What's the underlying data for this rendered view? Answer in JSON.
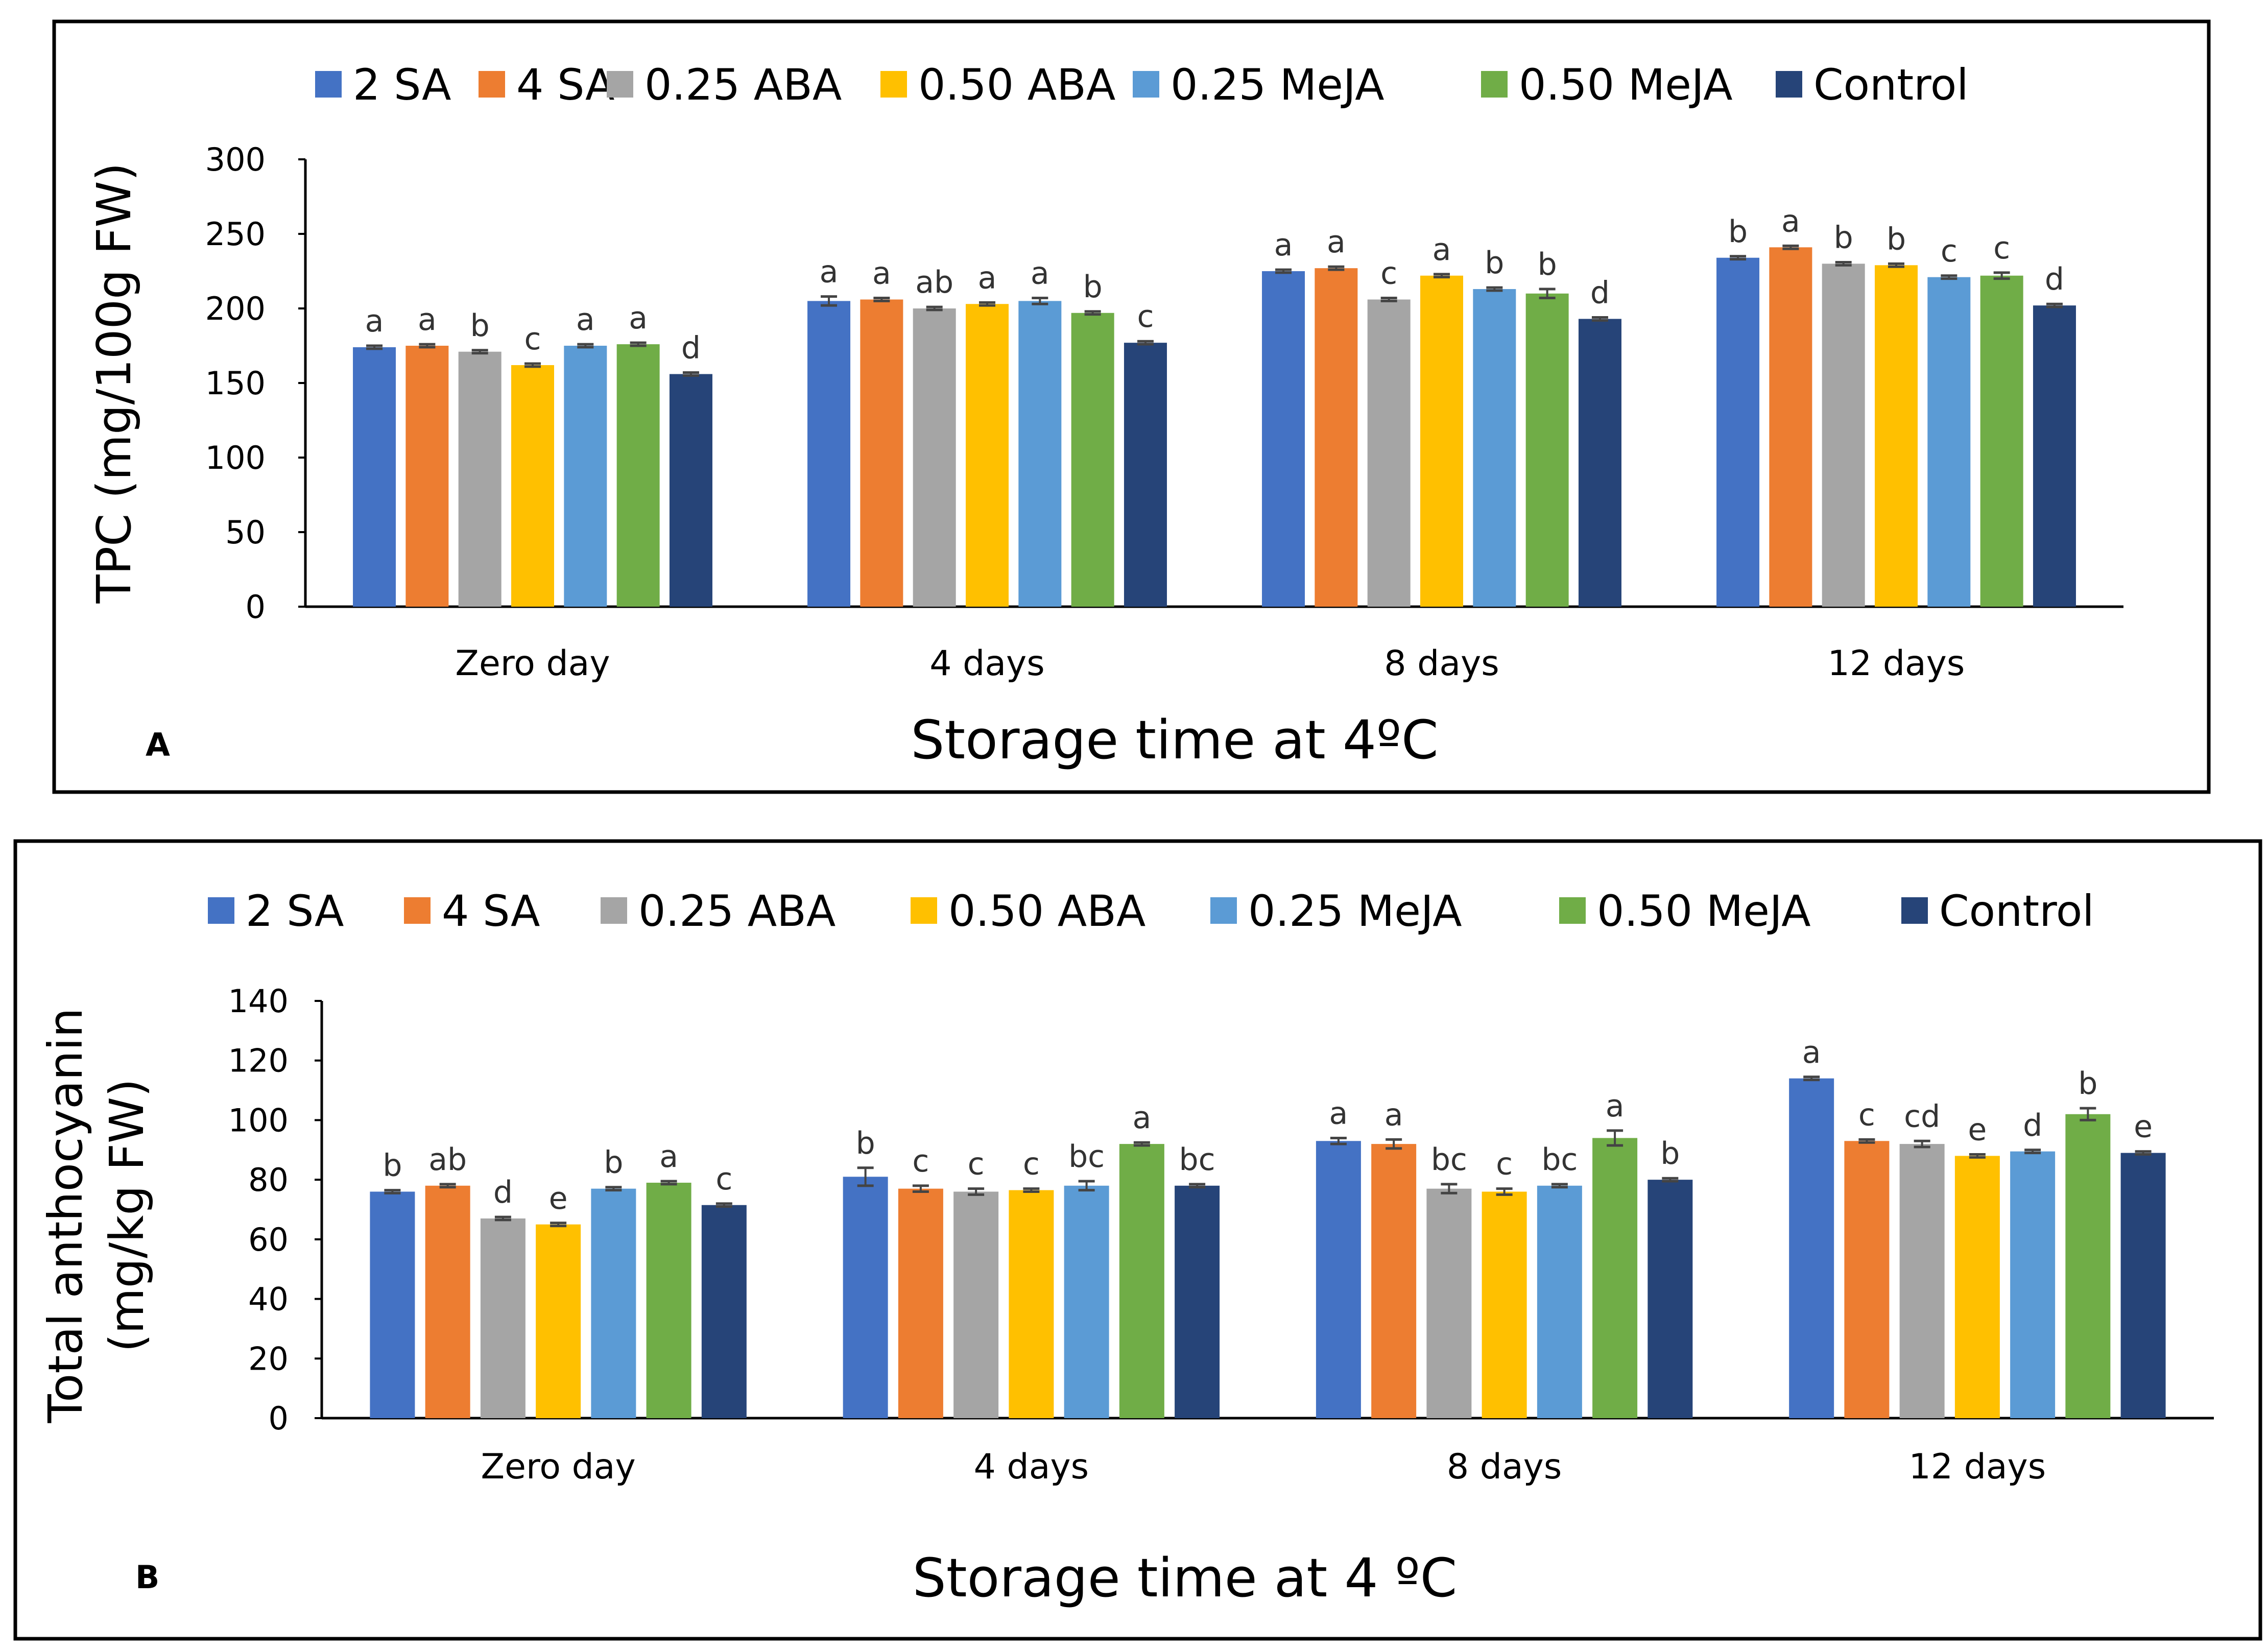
{
  "colors": {
    "2 SA": "#4472C4",
    "4 SA": "#ED7D31",
    "0.25 ABA": "#A5A5A5",
    "0.50 ABA": "#FFC000",
    "0.25 MeJA": "#5B9BD5",
    "0.50 MeJA": "#70AD47",
    "Control": "#264478",
    "error_bar": "#444444",
    "axis": "#000000",
    "text": "#222222"
  },
  "chart_data": [
    {
      "type": "bar",
      "panel": "A",
      "title": "",
      "xlabel": "Storage time at 4ºC",
      "ylabel": "TPC (mg/100g FW)",
      "ylim": [
        0,
        300
      ],
      "yticks": [
        0,
        50,
        100,
        150,
        200,
        250,
        300
      ],
      "grid": false,
      "legend_position": "top",
      "categories": [
        "Zero day",
        "4 days",
        "8 days",
        "12 days"
      ],
      "series": [
        {
          "name": "2 SA",
          "values": [
            174,
            205,
            225,
            234
          ],
          "errors": [
            1,
            3,
            1,
            1
          ],
          "letters": [
            "a",
            "a",
            "a",
            "b"
          ]
        },
        {
          "name": "4 SA",
          "values": [
            175,
            206,
            227,
            241
          ],
          "errors": [
            1,
            1,
            1,
            1
          ],
          "letters": [
            "a",
            "a",
            "a",
            "a"
          ]
        },
        {
          "name": "0.25 ABA",
          "values": [
            171,
            200,
            206,
            230
          ],
          "errors": [
            1,
            1,
            1,
            1
          ],
          "letters": [
            "b",
            "ab",
            "c",
            "b"
          ]
        },
        {
          "name": "0.50 ABA",
          "values": [
            162,
            203,
            222,
            229
          ],
          "errors": [
            1,
            1,
            1,
            1
          ],
          "letters": [
            "c",
            "a",
            "a",
            "b"
          ]
        },
        {
          "name": "0.25 MeJA",
          "values": [
            175,
            205,
            213,
            221
          ],
          "errors": [
            1,
            2,
            1,
            1
          ],
          "letters": [
            "a",
            "a",
            "b",
            "c"
          ]
        },
        {
          "name": "0.50 MeJA",
          "values": [
            176,
            197,
            210,
            222
          ],
          "errors": [
            1,
            1,
            3,
            2
          ],
          "letters": [
            "a",
            "b",
            "b",
            "c"
          ]
        },
        {
          "name": "Control",
          "values": [
            156,
            177,
            193,
            202
          ],
          "errors": [
            1,
            1,
            1,
            1
          ],
          "letters": [
            "d",
            "c",
            "d",
            "d"
          ]
        }
      ]
    },
    {
      "type": "bar",
      "panel": "B",
      "title": "",
      "xlabel": "Storage time at 4 ºC",
      "ylabel_line1": "Total anthocyanin",
      "ylabel_line2": "(mg/kg FW)",
      "ylim": [
        0,
        140
      ],
      "yticks": [
        0,
        20,
        40,
        60,
        80,
        100,
        120,
        140
      ],
      "grid": false,
      "legend_position": "top",
      "categories": [
        "Zero day",
        "4 days",
        "8 days",
        "12 days"
      ],
      "series": [
        {
          "name": "2 SA",
          "values": [
            76,
            81,
            93,
            114
          ],
          "errors": [
            0.5,
            3,
            1,
            0.5
          ],
          "letters": [
            "b",
            "b",
            "a",
            "a"
          ]
        },
        {
          "name": "4 SA",
          "values": [
            78,
            77,
            92,
            93
          ],
          "errors": [
            0.5,
            1,
            1.5,
            0.5
          ],
          "letters": [
            "ab",
            "c",
            "a",
            "c"
          ]
        },
        {
          "name": "0.25 ABA",
          "values": [
            67,
            76,
            77,
            92
          ],
          "errors": [
            0.5,
            1,
            1.5,
            1
          ],
          "letters": [
            "d",
            "c",
            "bc",
            "cd"
          ]
        },
        {
          "name": "0.50 ABA",
          "values": [
            65,
            76.5,
            76,
            88
          ],
          "errors": [
            0.5,
            0.5,
            1,
            0.5
          ],
          "letters": [
            "e",
            "c",
            "c",
            "e"
          ]
        },
        {
          "name": "0.25 MeJA",
          "values": [
            77,
            78,
            78,
            89.5
          ],
          "errors": [
            0.5,
            1.5,
            0.5,
            0.5
          ],
          "letters": [
            "b",
            "bc",
            "bc",
            "d"
          ]
        },
        {
          "name": "0.50 MeJA",
          "values": [
            79,
            92,
            94,
            102
          ],
          "errors": [
            0.5,
            0.5,
            2.5,
            2
          ],
          "letters": [
            "a",
            "a",
            "a",
            "b"
          ]
        },
        {
          "name": "Control",
          "values": [
            71.5,
            78,
            80,
            89
          ],
          "errors": [
            0.5,
            0.5,
            0.5,
            0.5
          ],
          "letters": [
            "c",
            "bc",
            "b",
            "e"
          ]
        }
      ]
    }
  ]
}
